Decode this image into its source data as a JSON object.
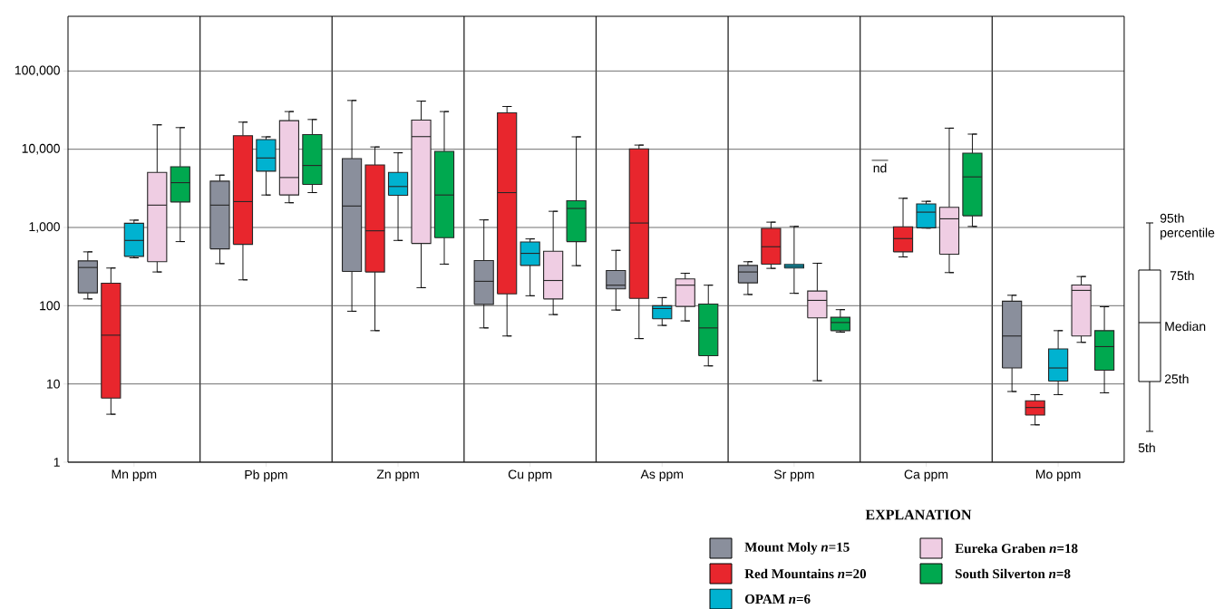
{
  "chart_data": {
    "type": "box",
    "log": true,
    "grid": true,
    "legend": "bottom right",
    "legend_title": "EXPLANATION",
    "categories": [
      "Mn ppm",
      "Pb ppm",
      "Zn ppm",
      "Cu ppm",
      "As ppm",
      "Sr ppm",
      "Ca ppm",
      "Mo ppm"
    ],
    "ylim": [
      1,
      500000
    ],
    "yticks": [
      1,
      10,
      100,
      {
        "value": 1000,
        "label": "1,000"
      },
      {
        "value": 10000,
        "label": "10,000"
      },
      {
        "value": 100000,
        "label": "100,000"
      }
    ],
    "annotations": [
      "nd",
      "95th percentile",
      "75th",
      "Median",
      "25th",
      "5th"
    ],
    "series": [
      {
        "name": "Mount Moly *n*=15",
        "color": "#8a8f9c",
        "boxes": [
          {
            "low": 122,
            "q1": 146,
            "median": 308,
            "q3": 374,
            "high": 488
          },
          {
            "low": 345,
            "q1": 533,
            "median": 1930,
            "q3": 3910,
            "high": 4670
          },
          {
            "low": 85,
            "q1": 274,
            "median": 1880,
            "q3": 7600,
            "high": 42000
          },
          {
            "low": 52,
            "q1": 104,
            "median": 205,
            "q3": 378,
            "high": 1250
          },
          {
            "low": 88,
            "q1": 164,
            "median": 183,
            "q3": 282,
            "high": 510
          },
          {
            "low": 139,
            "q1": 196,
            "median": 270,
            "q3": 327,
            "high": 365
          },
          null,
          {
            "low": 8,
            "q1": 16,
            "median": 41,
            "q3": 114,
            "high": 136
          }
        ]
      },
      {
        "name": "Red Mountains *n*=20",
        "color": "#e8262d",
        "boxes": [
          {
            "low": 4.1,
            "q1": 6.6,
            "median": 42,
            "q3": 194,
            "high": 303
          },
          {
            "low": 214,
            "q1": 609,
            "median": 2140,
            "q3": 14900,
            "high": 22200
          },
          {
            "low": 48,
            "q1": 270,
            "median": 907,
            "q3": 6300,
            "high": 10700
          },
          {
            "low": 41,
            "q1": 142,
            "median": 2790,
            "q3": 29200,
            "high": 35200
          },
          {
            "low": 38,
            "q1": 124,
            "median": 1140,
            "q3": 10100,
            "high": 11300
          },
          {
            "low": 300,
            "q1": 340,
            "median": 567,
            "q3": 973,
            "high": 1170
          },
          {
            "low": 420,
            "q1": 488,
            "median": 721,
            "q3": 1020,
            "high": 2360
          },
          {
            "low": 3,
            "q1": 4,
            "median": 5,
            "q3": 6.1,
            "high": 7.3
          }
        ]
      },
      {
        "name": "OPAM *n*=6",
        "color": "#00b2d0",
        "boxes": [
          {
            "low": 409,
            "q1": 427,
            "median": 683,
            "q3": 1130,
            "high": 1240
          },
          {
            "low": 2600,
            "q1": 5240,
            "median": 7730,
            "q3": 13300,
            "high": 14400
          },
          {
            "low": 683,
            "q1": 2580,
            "median": 3340,
            "q3": 5060,
            "high": 9000
          },
          {
            "low": 134,
            "q1": 327,
            "median": 467,
            "q3": 653,
            "high": 714
          },
          {
            "low": 56,
            "q1": 68,
            "median": 92,
            "q3": 100,
            "high": 127
          },
          {
            "low": 144,
            "q1": 303,
            "median": 319,
            "q3": 337,
            "high": 1030
          },
          {
            "low": 980,
            "q1": 990,
            "median": 1570,
            "q3": 2000,
            "high": 2160
          },
          {
            "low": 7.3,
            "q1": 10.9,
            "median": 16,
            "q3": 28,
            "high": 48
          }
        ]
      },
      {
        "name": "Eureka Graben *n*=18",
        "color": "#efcde3",
        "boxes": [
          {
            "low": 270,
            "q1": 365,
            "median": 1930,
            "q3": 5060,
            "high": 20500
          },
          {
            "low": 2070,
            "q1": 2600,
            "median": 4350,
            "q3": 23200,
            "high": 30300
          },
          {
            "low": 170,
            "q1": 625,
            "median": 14500,
            "q3": 23600,
            "high": 41200
          },
          {
            "low": 77,
            "q1": 122,
            "median": 210,
            "q3": 497,
            "high": 1610
          },
          {
            "low": 64,
            "q1": 98,
            "median": 183,
            "q3": 220,
            "high": 260
          },
          {
            "low": 11,
            "q1": 70,
            "median": 117,
            "q3": 154,
            "high": 349
          },
          {
            "low": 265,
            "q1": 455,
            "median": 1290,
            "q3": 1810,
            "high": 18600
          },
          {
            "low": 34,
            "q1": 41,
            "median": 157,
            "q3": 184,
            "high": 236
          }
        ]
      },
      {
        "name": "South Silverton *n*=8",
        "color": "#00a84f",
        "boxes": [
          {
            "low": 660,
            "q1": 2120,
            "median": 3740,
            "q3": 5980,
            "high": 18900
          },
          {
            "low": 2790,
            "q1": 3550,
            "median": 6200,
            "q3": 15400,
            "high": 24000
          },
          {
            "low": 340,
            "q1": 740,
            "median": 2600,
            "q3": 9400,
            "high": 30300
          },
          {
            "low": 325,
            "q1": 660,
            "median": 1750,
            "q3": 2200,
            "high": 14400
          },
          {
            "low": 17,
            "q1": 23,
            "median": 52,
            "q3": 105,
            "high": 183
          },
          {
            "low": 46,
            "q1": 48,
            "median": 61,
            "q3": 71,
            "high": 89
          },
          {
            "low": 1030,
            "q1": 1410,
            "median": 4430,
            "q3": 8920,
            "high": 15600
          },
          {
            "low": 7.7,
            "q1": 15,
            "median": 30,
            "q3": 48,
            "high": 97
          }
        ]
      }
    ]
  }
}
